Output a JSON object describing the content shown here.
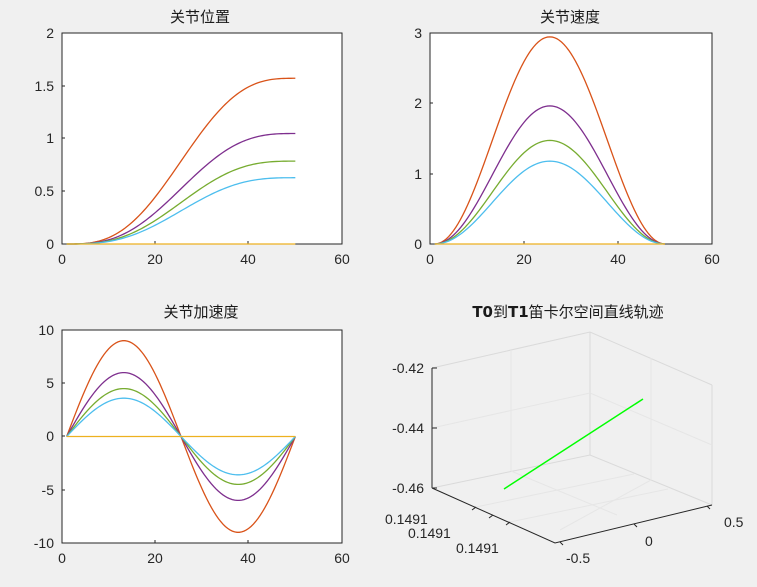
{
  "figure": {
    "background": "#f0f0f0",
    "axes_background": "#ffffff",
    "axis_color": "#262626"
  },
  "chart_data": [
    {
      "type": "line",
      "title": "关节位置",
      "xlim": [
        0,
        60
      ],
      "ylim": [
        0,
        2
      ],
      "xticks": [
        0,
        20,
        40,
        60
      ],
      "xtick_labels": [
        "0",
        "20",
        "40",
        "60"
      ],
      "yticks": [
        0,
        0.5,
        1,
        1.5,
        2
      ],
      "ytick_labels": [
        "0",
        "0.5",
        "1",
        "1.5",
        "2"
      ],
      "x_range": [
        1,
        50
      ],
      "series": [
        {
          "color": "#d95319",
          "kind": "position",
          "amplitude": 1.5708
        },
        {
          "color": "#7e2f8e",
          "kind": "position",
          "amplitude": 1.0472
        },
        {
          "color": "#77ac30",
          "kind": "position",
          "amplitude": 0.7854
        },
        {
          "color": "#4dbeee",
          "kind": "position",
          "amplitude": 0.6283
        },
        {
          "color": "#edb120",
          "kind": "position",
          "amplitude": 0
        }
      ]
    },
    {
      "type": "line",
      "title": "关节速度",
      "xlim": [
        0,
        60
      ],
      "ylim": [
        0,
        3
      ],
      "xticks": [
        0,
        20,
        40,
        60
      ],
      "xtick_labels": [
        "0",
        "20",
        "40",
        "60"
      ],
      "yticks": [
        0,
        1,
        2,
        3
      ],
      "ytick_labels": [
        "0",
        "1",
        "2",
        "3"
      ],
      "x_range": [
        1,
        50
      ],
      "series": [
        {
          "color": "#d95319",
          "kind": "velocity",
          "amplitude": 1.5708
        },
        {
          "color": "#7e2f8e",
          "kind": "velocity",
          "amplitude": 1.0472
        },
        {
          "color": "#77ac30",
          "kind": "velocity",
          "amplitude": 0.7854
        },
        {
          "color": "#4dbeee",
          "kind": "velocity",
          "amplitude": 0.6283
        },
        {
          "color": "#edb120",
          "kind": "velocity",
          "amplitude": 0
        }
      ]
    },
    {
      "type": "line",
      "title": "关节加速度",
      "xlim": [
        0,
        60
      ],
      "ylim": [
        -10,
        10
      ],
      "xticks": [
        0,
        20,
        40,
        60
      ],
      "xtick_labels": [
        "0",
        "20",
        "40",
        "60"
      ],
      "yticks": [
        -10,
        -5,
        0,
        5,
        10
      ],
      "ytick_labels": [
        "-10",
        "-5",
        "0",
        "5",
        "10"
      ],
      "x_range": [
        1,
        50
      ],
      "series": [
        {
          "color": "#d95319",
          "kind": "acceleration",
          "amplitude": 1.5708
        },
        {
          "color": "#7e2f8e",
          "kind": "acceleration",
          "amplitude": 1.0472
        },
        {
          "color": "#77ac30",
          "kind": "acceleration",
          "amplitude": 0.7854
        },
        {
          "color": "#4dbeee",
          "kind": "acceleration",
          "amplitude": 0.6283
        },
        {
          "color": "#edb120",
          "kind": "acceleration",
          "amplitude": 0
        }
      ]
    },
    {
      "type": "line3d",
      "title_prefix": "T0",
      "title_mid": "到",
      "title_t1": "T1",
      "title_suffix": "笛卡尔空间直线轨迹",
      "xtick_labels": [
        "0.1491",
        "0.1491",
        "0.1491"
      ],
      "ytick_labels": [
        "-0.5",
        "0",
        "0.5"
      ],
      "ztick_labels": [
        "-0.42",
        "-0.44",
        "-0.46"
      ],
      "line_color": "#00ff00"
    }
  ]
}
